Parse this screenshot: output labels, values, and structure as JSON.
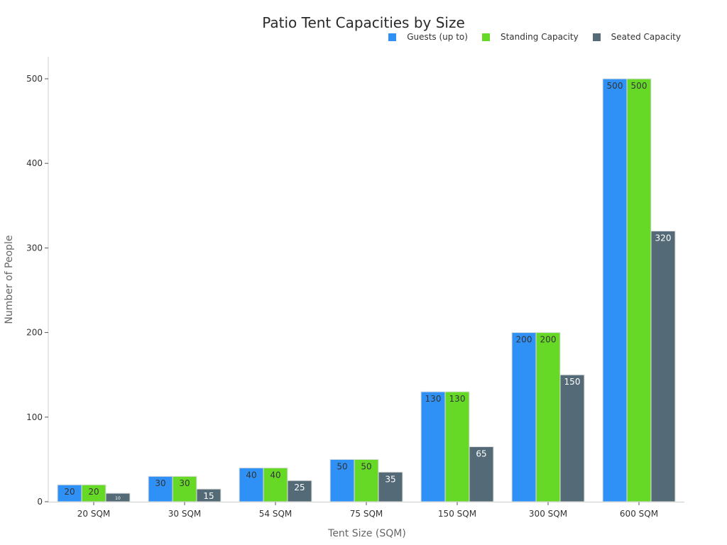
{
  "chart_data": {
    "type": "bar",
    "title": "Patio Tent Capacities by Size",
    "xlabel": "Tent Size (SQM)",
    "ylabel": "Number of People",
    "categories": [
      "20 SQM",
      "30 SQM",
      "54 SQM",
      "75 SQM",
      "150 SQM",
      "300 SQM",
      "600 SQM"
    ],
    "series": [
      {
        "name": "Guests (up to)",
        "color": "#2f90f5",
        "label_color": "#333333",
        "values": [
          20,
          30,
          40,
          50,
          130,
          200,
          500
        ]
      },
      {
        "name": "Standing Capacity",
        "color": "#66d927",
        "label_color": "#333333",
        "values": [
          20,
          30,
          40,
          50,
          130,
          200,
          500
        ]
      },
      {
        "name": "Seated Capacity",
        "color": "#546b77",
        "label_color": "#ffffff",
        "values": [
          10,
          15,
          25,
          35,
          65,
          150,
          320
        ]
      }
    ],
    "ylim": [
      0,
      525
    ],
    "yticks": [
      0,
      100,
      200,
      300,
      400,
      500
    ],
    "grid": false,
    "legend_position": "top-right",
    "data_labels": true
  }
}
